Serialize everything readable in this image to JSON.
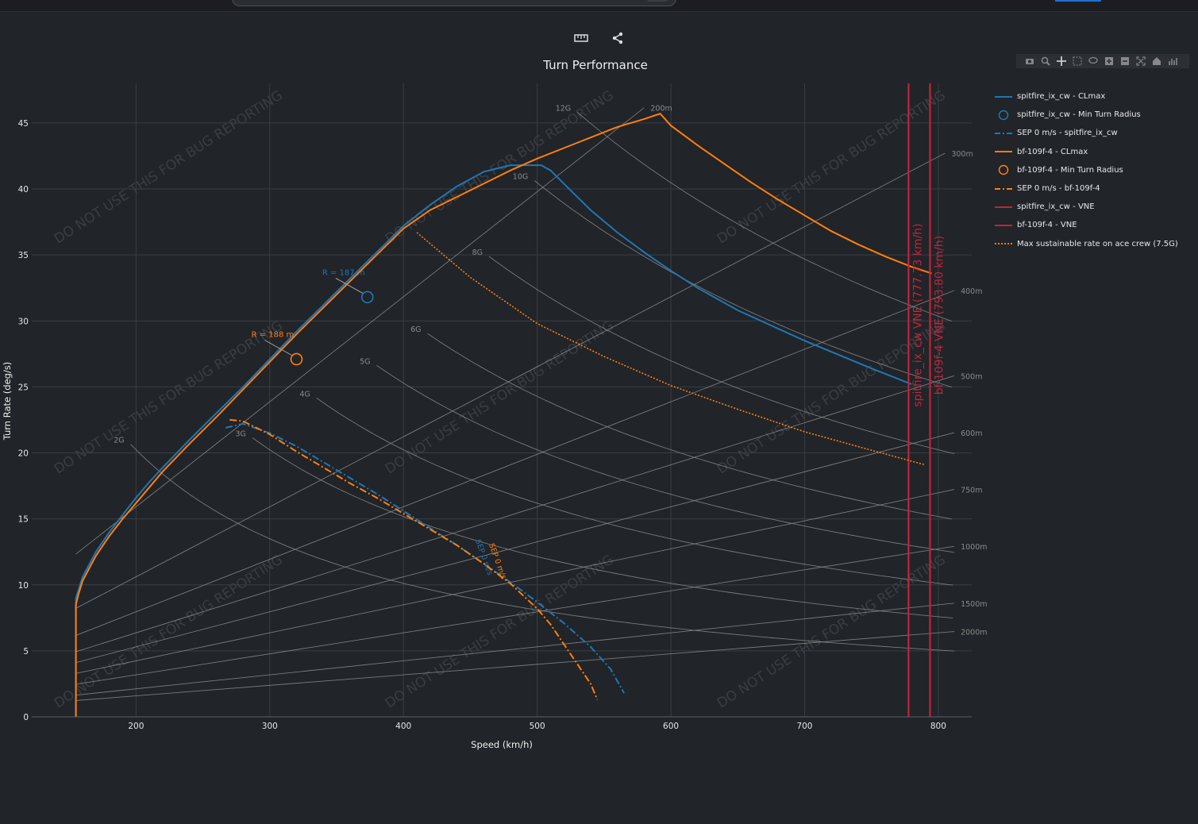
{
  "toolbar": {
    "top_icons": [
      "ruler-icon",
      "share-icon"
    ],
    "modebar_icons": [
      "camera-icon",
      "zoom-icon",
      "pan-icon",
      "box-select-icon",
      "lasso-icon",
      "zoom-in-icon",
      "zoom-out-icon",
      "autoscale-icon",
      "reset-axes-icon",
      "plotly-logo-icon"
    ]
  },
  "colors": {
    "background": "#212428",
    "grid": "#3a3e44",
    "spitfire": "#1f77b4",
    "bf109": "#ff7f0e",
    "vne": "#c0253a",
    "reference": "#8a8a8a",
    "watermark": "#3a3e44"
  },
  "watermark_text": "DO NOT USE THIS FOR BUG REPORTING",
  "chart_data": {
    "type": "line",
    "title": "Turn Performance",
    "xlabel": "Speed (km/h)",
    "ylabel": "Turn Rate (deg/s)",
    "xlim": [
      122,
      825
    ],
    "ylim": [
      0,
      48
    ],
    "xticks": [
      200,
      300,
      400,
      500,
      600,
      700,
      800
    ],
    "yticks": [
      0,
      5,
      10,
      15,
      20,
      25,
      30,
      35,
      40,
      45
    ],
    "series": [
      {
        "name": "spitfire_ix_cw - CLmax",
        "color": "#1f77b4",
        "style": "solid",
        "x": [
          155,
          155,
          160,
          170,
          180,
          190,
          200,
          210,
          220,
          240,
          260,
          280,
          300,
          320,
          340,
          360,
          380,
          400,
          420,
          440,
          460,
          480,
          500,
          503,
          510,
          520,
          540,
          560,
          580,
          600,
          620,
          650,
          700,
          750,
          780
        ],
        "y": [
          0,
          9,
          10.6,
          12.5,
          14,
          15.3,
          16.6,
          17.8,
          18.9,
          21,
          23,
          25,
          27.1,
          29.2,
          31.2,
          33.2,
          35.2,
          37.2,
          38.8,
          40.2,
          41.3,
          41.8,
          41.8,
          41.8,
          41.4,
          40.4,
          38.4,
          36.7,
          35.2,
          33.8,
          32.5,
          30.8,
          28.5,
          26.4,
          25.2
        ]
      },
      {
        "name": "spitfire_ix_cw - Min Turn Radius",
        "color": "#1f77b4",
        "marker": "circle",
        "x": [
          373
        ],
        "y": [
          31.8
        ],
        "label": "R = 187 m"
      },
      {
        "name": "SEP 0 m/s - spitfire_ix_cw",
        "color": "#1f77b4",
        "style": "dashdot",
        "x": [
          267,
          280,
          300,
          320,
          340,
          360,
          380,
          400,
          420,
          440,
          460,
          480,
          500,
          520,
          540,
          555,
          565
        ],
        "y": [
          21.9,
          22.2,
          21.5,
          20.5,
          19.3,
          18.1,
          16.9,
          15.6,
          14.3,
          13,
          11.6,
          10.2,
          8.7,
          7.1,
          5.3,
          3.6,
          1.8
        ],
        "label": "SEP 0 m/s"
      },
      {
        "name": "bf-109f-4 - CLmax",
        "color": "#ff7f0e",
        "style": "solid",
        "x": [
          155,
          155,
          157,
          160,
          170,
          180,
          190,
          200,
          220,
          240,
          260,
          280,
          300,
          320,
          340,
          360,
          380,
          400,
          420,
          440,
          460,
          480,
          500,
          520,
          540,
          560,
          580,
          592,
          600,
          620,
          640,
          660,
          680,
          700,
          720,
          740,
          760,
          780,
          795
        ],
        "y": [
          0,
          8.5,
          9.3,
          10.3,
          12.2,
          13.7,
          15,
          16.2,
          18.6,
          20.7,
          22.7,
          24.8,
          26.9,
          29,
          31,
          33,
          35,
          37,
          38.4,
          39.4,
          40.4,
          41.4,
          42.3,
          43.1,
          43.9,
          44.7,
          45.3,
          45.7,
          44.8,
          43.3,
          41.9,
          40.5,
          39.2,
          38,
          36.8,
          35.8,
          34.9,
          34.1,
          33.6
        ]
      },
      {
        "name": "bf-109f-4 - Min Turn Radius",
        "color": "#ff7f0e",
        "marker": "circle",
        "x": [
          320
        ],
        "y": [
          27.1
        ],
        "label": "R = 188 m"
      },
      {
        "name": "SEP 0 m/s - bf-109f-4",
        "color": "#ff7f0e",
        "style": "dashdot",
        "x": [
          270,
          280,
          300,
          320,
          340,
          360,
          380,
          400,
          420,
          440,
          460,
          480,
          500,
          510,
          520,
          530,
          540,
          545
        ],
        "y": [
          22.5,
          22.4,
          21.4,
          20.1,
          18.9,
          17.7,
          16.6,
          15.4,
          14.2,
          13,
          11.6,
          10.1,
          8.2,
          7,
          5.5,
          4,
          2.5,
          1.3
        ],
        "label": "SEP 0 m/s"
      },
      {
        "name": "spitfire_ix_cw - VNE",
        "color": "#c0253a",
        "style": "solid",
        "vline": 777.73,
        "label": "spitfire_ix_cw VNE (777.73 km/h)"
      },
      {
        "name": "bf-109f-4 - VNE",
        "color": "#c0253a",
        "style": "solid",
        "vline": 793.8,
        "label": "bf-109f-4 VNE (793.80 km/h)"
      },
      {
        "name": "Max sustainable rate on ace crew (7.5G)",
        "color": "#ff7f0e",
        "style": "dotted",
        "x": [
          410,
          450,
          500,
          550,
          600,
          650,
          700,
          750,
          790
        ],
        "y": [
          36.7,
          33.3,
          29.8,
          27.3,
          25.1,
          23.3,
          21.6,
          20.2,
          19.1
        ]
      }
    ],
    "g_lines": [
      {
        "label": "2G",
        "g": 2,
        "x_start": 196
      },
      {
        "label": "3G",
        "g": 3,
        "x_start": 287
      },
      {
        "label": "4G",
        "g": 4,
        "x_start": 335
      },
      {
        "label": "5G",
        "g": 5,
        "x_start": 380
      },
      {
        "label": "6G",
        "g": 6,
        "x_start": 418
      },
      {
        "label": "8G",
        "g": 8,
        "x_start": 464
      },
      {
        "label": "10G",
        "g": 10,
        "x_start": 498
      },
      {
        "label": "12G",
        "g": 12,
        "x_start": 530
      }
    ],
    "radius_lines": [
      {
        "label": "200m",
        "r": 200,
        "x_end": 580
      },
      {
        "label": "300m",
        "r": 300,
        "x_end": 805
      },
      {
        "label": "400m",
        "r": 400
      },
      {
        "label": "500m",
        "r": 500
      },
      {
        "label": "600m",
        "r": 600
      },
      {
        "label": "750m",
        "r": 750
      },
      {
        "label": "1000m",
        "r": 1000
      },
      {
        "label": "1500m",
        "r": 1500
      },
      {
        "label": "2000m",
        "r": 2000
      }
    ]
  }
}
